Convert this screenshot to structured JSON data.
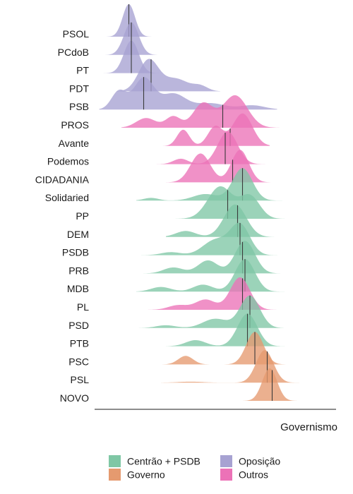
{
  "chart_data": {
    "type": "ridgeline",
    "xlabel": "Governismo",
    "legend_position": "bottom",
    "groups": [
      {
        "key": "centrao",
        "name": "Centrão + PSDB",
        "color": "#7fc7a5"
      },
      {
        "key": "governo",
        "name": "Governo",
        "color": "#e59a6f"
      },
      {
        "key": "oposicao",
        "name": "Oposição",
        "color": "#a7a2d2"
      },
      {
        "key": "outros",
        "name": "Outros",
        "color": "#ec72b7"
      }
    ],
    "parties": [
      {
        "name": "PSOL",
        "group": "oposicao",
        "median": 0.15,
        "range": [
          0.06,
          0.32
        ],
        "peaks": [
          [
            0.15,
            0.025,
            1.0
          ]
        ]
      },
      {
        "name": "PCdoB",
        "group": "oposicao",
        "median": 0.16,
        "range": [
          0.05,
          0.34
        ],
        "peaks": [
          [
            0.16,
            0.03,
            1.0
          ]
        ]
      },
      {
        "name": "PT",
        "group": "oposicao",
        "median": 0.16,
        "range": [
          0.04,
          0.33
        ],
        "peaks": [
          [
            0.16,
            0.03,
            1.0
          ]
        ]
      },
      {
        "name": "PDT",
        "group": "oposicao",
        "median": 0.24,
        "range": [
          0.1,
          0.52
        ],
        "peaks": [
          [
            0.23,
            0.04,
            0.75
          ],
          [
            0.34,
            0.05,
            0.3
          ],
          [
            0.44,
            0.03,
            0.12
          ]
        ]
      },
      {
        "name": "PSB",
        "group": "oposicao",
        "median": 0.21,
        "range": [
          0.03,
          0.75
        ],
        "peaks": [
          [
            0.11,
            0.03,
            0.35
          ],
          [
            0.21,
            0.04,
            0.6
          ],
          [
            0.33,
            0.05,
            0.3
          ],
          [
            0.48,
            0.06,
            0.12
          ],
          [
            0.65,
            0.05,
            0.08
          ]
        ]
      },
      {
        "name": "PROS",
        "group": "outros",
        "median": 0.53,
        "range": [
          0.12,
          0.8
        ],
        "peaks": [
          [
            0.22,
            0.04,
            0.12
          ],
          [
            0.33,
            0.03,
            0.14
          ],
          [
            0.45,
            0.04,
            0.3
          ],
          [
            0.58,
            0.05,
            0.4
          ]
        ]
      },
      {
        "name": "Avante",
        "group": "outros",
        "median": 0.56,
        "range": [
          0.25,
          0.72
        ],
        "peaks": [
          [
            0.37,
            0.025,
            0.25
          ],
          [
            0.5,
            0.03,
            0.3
          ],
          [
            0.61,
            0.04,
            0.5
          ]
        ]
      },
      {
        "name": "Podemos",
        "group": "outros",
        "median": 0.54,
        "range": [
          0.25,
          0.72
        ],
        "peaks": [
          [
            0.36,
            0.03,
            0.1
          ],
          [
            0.55,
            0.04,
            0.6
          ]
        ]
      },
      {
        "name": "CIDADANIA",
        "group": "outros",
        "median": 0.57,
        "range": [
          0.3,
          0.75
        ],
        "peaks": [
          [
            0.44,
            0.04,
            0.4
          ],
          [
            0.6,
            0.035,
            0.45
          ]
        ]
      },
      {
        "name": "Solidaried",
        "group": "centrao",
        "median": 0.61,
        "range": [
          0.18,
          0.8
        ],
        "peaks": [
          [
            0.24,
            0.03,
            0.05
          ],
          [
            0.46,
            0.05,
            0.12
          ],
          [
            0.61,
            0.04,
            0.6
          ]
        ]
      },
      {
        "name": "PP",
        "group": "centrao",
        "median": 0.55,
        "range": [
          0.32,
          0.8
        ],
        "peaks": [
          [
            0.52,
            0.05,
            0.5
          ],
          [
            0.64,
            0.04,
            0.35
          ]
        ]
      },
      {
        "name": "DEM",
        "group": "centrao",
        "median": 0.59,
        "range": [
          0.3,
          0.8
        ],
        "peaks": [
          [
            0.38,
            0.04,
            0.12
          ],
          [
            0.58,
            0.045,
            0.65
          ]
        ]
      },
      {
        "name": "PSDB",
        "group": "centrao",
        "median": 0.6,
        "range": [
          0.2,
          0.8
        ],
        "peaks": [
          [
            0.32,
            0.04,
            0.06
          ],
          [
            0.5,
            0.05,
            0.3
          ],
          [
            0.6,
            0.04,
            0.6
          ]
        ]
      },
      {
        "name": "PRB",
        "group": "centrao",
        "median": 0.61,
        "range": [
          0.18,
          0.8
        ],
        "peaks": [
          [
            0.33,
            0.04,
            0.1
          ],
          [
            0.47,
            0.04,
            0.22
          ],
          [
            0.62,
            0.04,
            0.55
          ]
        ]
      },
      {
        "name": "MDB",
        "group": "centrao",
        "median": 0.62,
        "range": [
          0.18,
          0.8
        ],
        "peaks": [
          [
            0.28,
            0.04,
            0.1
          ],
          [
            0.45,
            0.04,
            0.15
          ],
          [
            0.62,
            0.04,
            0.7
          ]
        ]
      },
      {
        "name": "PL",
        "group": "outros",
        "median": 0.61,
        "range": [
          0.2,
          0.8
        ],
        "peaks": [
          [
            0.35,
            0.04,
            0.1
          ],
          [
            0.46,
            0.04,
            0.22
          ],
          [
            0.6,
            0.04,
            0.7
          ]
        ]
      },
      {
        "name": "PSD",
        "group": "centrao",
        "median": 0.64,
        "range": [
          0.18,
          0.82
        ],
        "peaks": [
          [
            0.3,
            0.04,
            0.06
          ],
          [
            0.5,
            0.05,
            0.2
          ],
          [
            0.64,
            0.04,
            0.7
          ]
        ]
      },
      {
        "name": "PTB",
        "group": "centrao",
        "median": 0.63,
        "range": [
          0.3,
          0.82
        ],
        "peaks": [
          [
            0.42,
            0.04,
            0.15
          ],
          [
            0.63,
            0.04,
            0.8
          ]
        ]
      },
      {
        "name": "PSC",
        "group": "governo",
        "median": 0.66,
        "range": [
          0.28,
          0.82
        ],
        "peaks": [
          [
            0.38,
            0.03,
            0.25
          ],
          [
            0.66,
            0.035,
            0.95
          ]
        ]
      },
      {
        "name": "PSL",
        "group": "governo",
        "median": 0.71,
        "range": [
          0.28,
          0.85
        ],
        "peaks": [
          [
            0.4,
            0.05,
            0.03
          ],
          [
            0.7,
            0.035,
            1.0
          ]
        ]
      },
      {
        "name": "NOVO",
        "group": "governo",
        "median": 0.73,
        "range": [
          0.6,
          0.86
        ],
        "peaks": [
          [
            0.72,
            0.03,
            1.0
          ]
        ]
      }
    ]
  }
}
